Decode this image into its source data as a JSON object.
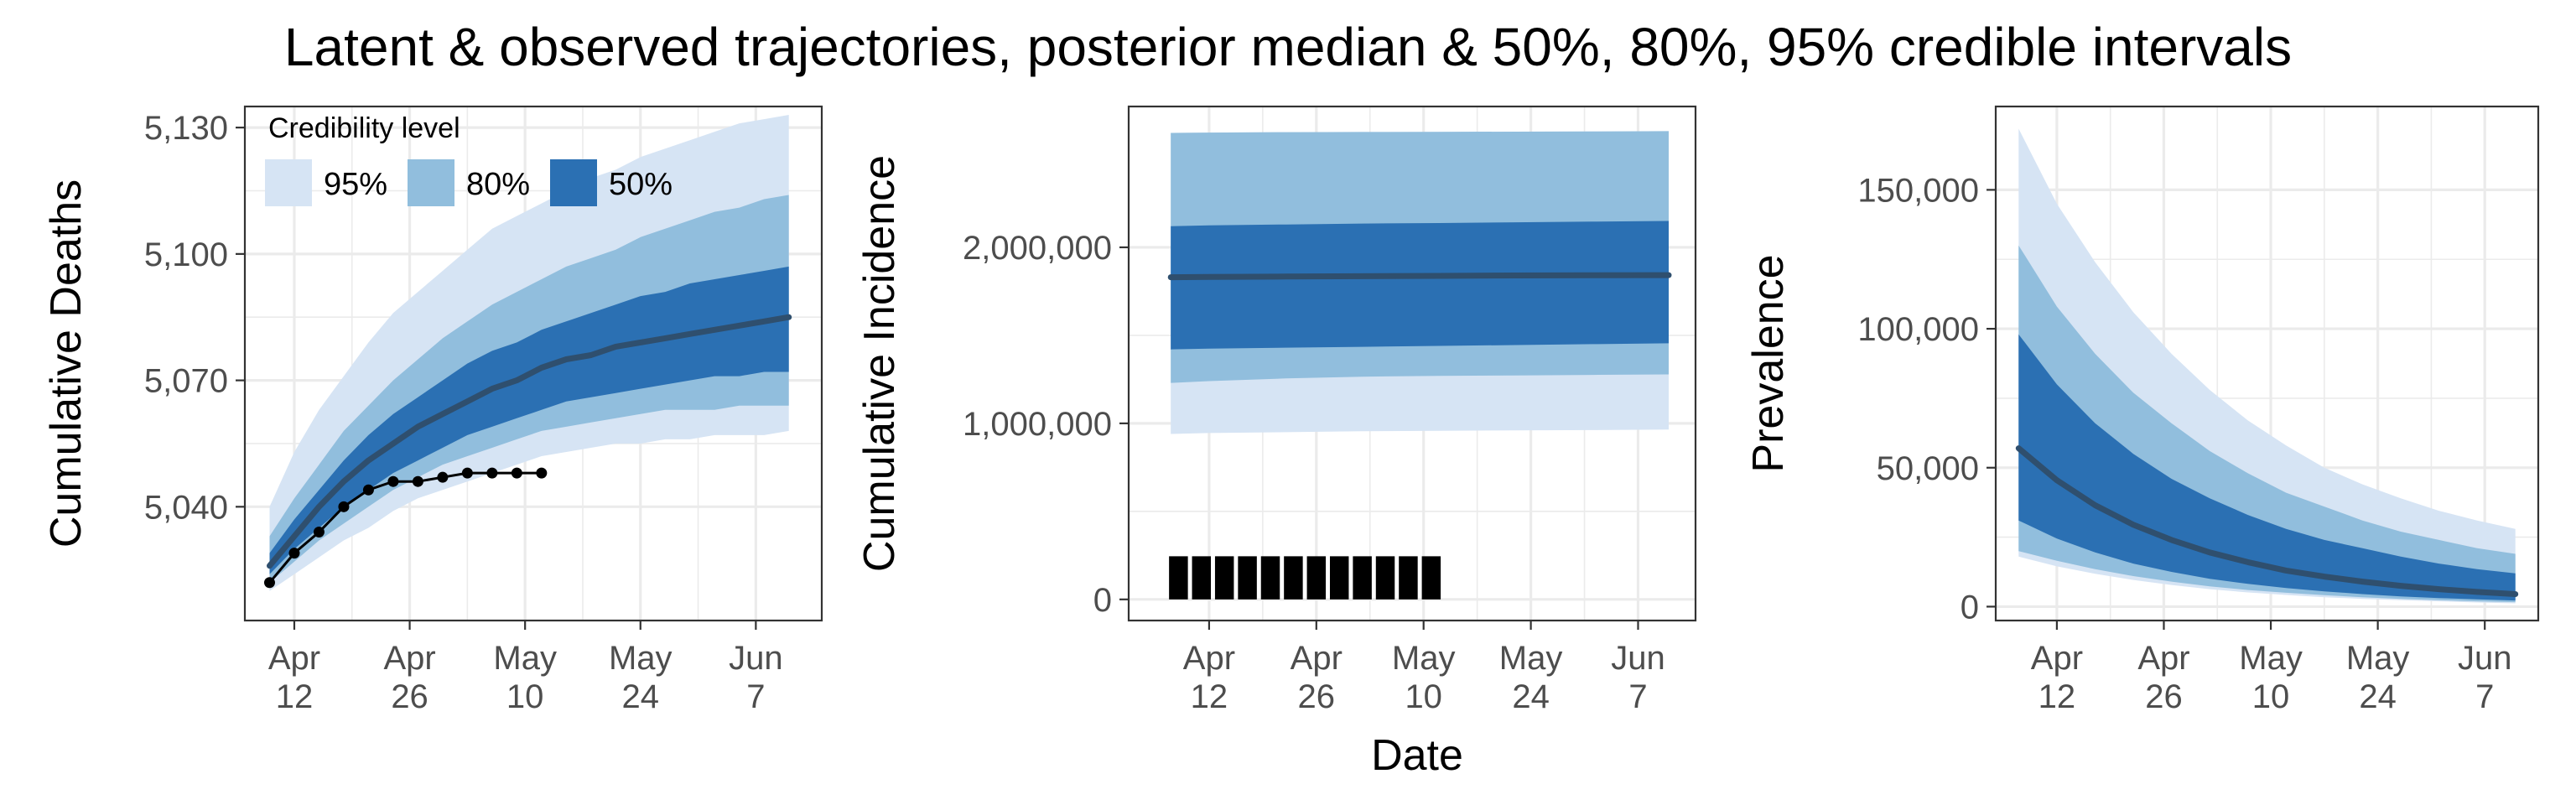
{
  "figure": {
    "title": "Latent & observed trajectories, posterior median & 50%, 80%, 95% credible intervals",
    "shared_xlabel": "Date"
  },
  "colors": {
    "ci95": "#d6e4f4",
    "ci80": "#91bedd",
    "ci50": "#2b70b3",
    "median": "#2f4f6e",
    "observed": "#000000"
  },
  "legend": {
    "title": "Credibility level",
    "items": [
      {
        "label": "95%",
        "color": "#d6e4f4"
      },
      {
        "label": "80%",
        "color": "#91bedd"
      },
      {
        "label": "50%",
        "color": "#2b70b3"
      }
    ]
  },
  "chart_data": [
    {
      "type": "area",
      "ylabel": "Cumulative Deaths",
      "x_ticks": [
        {
          "x": 0,
          "line1": "Apr",
          "line2": "12"
        },
        {
          "x": 14,
          "line1": "Apr",
          "line2": "26"
        },
        {
          "x": 28,
          "line1": "May",
          "line2": "10"
        },
        {
          "x": 42,
          "line1": "May",
          "line2": "24"
        },
        {
          "x": 56,
          "line1": "Jun",
          "line2": "7"
        }
      ],
      "xlim": [
        -6,
        64
      ],
      "ylim": [
        5013,
        5135
      ],
      "y_ticks": [
        {
          "value": 5040,
          "label": "5,040"
        },
        {
          "value": 5070,
          "label": "5,070"
        },
        {
          "value": 5100,
          "label": "5,100"
        },
        {
          "value": 5130,
          "label": "5,130"
        }
      ],
      "bands": {
        "x": [
          -3,
          0,
          3,
          6,
          9,
          12,
          15,
          18,
          21,
          24,
          27,
          30,
          33,
          36,
          39,
          42,
          45,
          48,
          51,
          54,
          57,
          60
        ],
        "ci95_lo": [
          5020,
          5024,
          5028,
          5032,
          5035,
          5039,
          5042,
          5044,
          5046,
          5048,
          5050,
          5052,
          5053,
          5054,
          5055,
          5055,
          5056,
          5056,
          5057,
          5057,
          5057,
          5058
        ],
        "ci95_hi": [
          5040,
          5053,
          5063,
          5071,
          5079,
          5086,
          5091,
          5096,
          5101,
          5106,
          5109,
          5112,
          5115,
          5118,
          5120,
          5123,
          5125,
          5127,
          5129,
          5131,
          5132,
          5133
        ],
        "ci80_lo": [
          5022,
          5027,
          5032,
          5036,
          5040,
          5044,
          5047,
          5050,
          5052,
          5054,
          5056,
          5058,
          5059,
          5060,
          5061,
          5062,
          5063,
          5063,
          5063,
          5064,
          5064,
          5064
        ],
        "ci80_hi": [
          5033,
          5042,
          5050,
          5058,
          5064,
          5070,
          5075,
          5080,
          5084,
          5088,
          5091,
          5094,
          5097,
          5099,
          5101,
          5104,
          5106,
          5108,
          5110,
          5111,
          5113,
          5114
        ],
        "ci50_lo": [
          5024,
          5030,
          5035,
          5040,
          5044,
          5048,
          5051,
          5054,
          5057,
          5059,
          5061,
          5063,
          5065,
          5066,
          5067,
          5068,
          5069,
          5070,
          5071,
          5071,
          5072,
          5072
        ],
        "ci50_hi": [
          5029,
          5037,
          5044,
          5051,
          5057,
          5062,
          5066,
          5070,
          5074,
          5077,
          5079,
          5082,
          5084,
          5086,
          5088,
          5090,
          5091,
          5093,
          5094,
          5095,
          5096,
          5097
        ],
        "median": [
          5026,
          5033,
          5040,
          5046,
          5051,
          5055,
          5059,
          5062,
          5065,
          5068,
          5070,
          5073,
          5075,
          5076,
          5078,
          5079,
          5080,
          5081,
          5082,
          5083,
          5084,
          5085
        ]
      },
      "observed": {
        "x": [
          -3,
          0,
          3,
          6,
          9,
          12,
          15,
          18,
          21,
          24,
          27,
          30
        ],
        "y": [
          5022,
          5029,
          5034,
          5040,
          5044,
          5046,
          5046,
          5047,
          5048,
          5048,
          5048,
          5048
        ]
      }
    },
    {
      "type": "area",
      "ylabel": "Cumulative Incidence",
      "x_ticks": [
        {
          "x": 0,
          "line1": "Apr",
          "line2": "12"
        },
        {
          "x": 14,
          "line1": "Apr",
          "line2": "26"
        },
        {
          "x": 28,
          "line1": "May",
          "line2": "10"
        },
        {
          "x": 42,
          "line1": "May",
          "line2": "24"
        },
        {
          "x": 56,
          "line1": "Jun",
          "line2": "7"
        }
      ],
      "xlim": [
        -10.5,
        63.5
      ],
      "ylim": [
        -120000,
        2800000
      ],
      "y_ticks": [
        {
          "value": 0,
          "label": "0"
        },
        {
          "value": 1000000,
          "label": "1,000,000"
        },
        {
          "value": 2000000,
          "label": "2,000,000"
        }
      ],
      "bands": {
        "x": [
          -5,
          0,
          10,
          20,
          30,
          40,
          50,
          60
        ],
        "ci95_lo": [
          940000,
          945000,
          950000,
          955000,
          958000,
          960000,
          962000,
          965000
        ],
        "ci95_hi": [
          2650000,
          2652000,
          2654000,
          2655000,
          2656000,
          2657000,
          2658000,
          2660000
        ],
        "ci80_lo": [
          1230000,
          1240000,
          1255000,
          1265000,
          1270000,
          1272000,
          1275000,
          1278000
        ],
        "ci80_hi": [
          2650000,
          2652000,
          2654000,
          2655000,
          2656000,
          2657000,
          2658000,
          2660000
        ],
        "ci50_lo": [
          1420000,
          1425000,
          1430000,
          1435000,
          1440000,
          1445000,
          1450000,
          1455000
        ],
        "ci50_hi": [
          2120000,
          2125000,
          2130000,
          2135000,
          2138000,
          2142000,
          2146000,
          2150000
        ],
        "median": [
          1830000,
          1832000,
          1834000,
          1836000,
          1838000,
          1840000,
          1841000,
          1842000
        ]
      },
      "observed_bars": {
        "x": [
          -4,
          -1,
          2,
          5,
          8,
          11,
          14,
          17,
          20,
          23,
          26,
          29
        ],
        "y": [
          245000,
          245000,
          245000,
          245000,
          245000,
          245000,
          245000,
          245000,
          245000,
          245000,
          245000,
          245000
        ]
      }
    },
    {
      "type": "area",
      "ylabel": "Prevalence",
      "x_ticks": [
        {
          "x": 0,
          "line1": "Apr",
          "line2": "12"
        },
        {
          "x": 14,
          "line1": "Apr",
          "line2": "26"
        },
        {
          "x": 28,
          "line1": "May",
          "line2": "10"
        },
        {
          "x": 42,
          "line1": "May",
          "line2": "24"
        },
        {
          "x": 56,
          "line1": "Jun",
          "line2": "7"
        }
      ],
      "xlim": [
        -8,
        63
      ],
      "ylim": [
        -5000,
        180000
      ],
      "y_ticks": [
        {
          "value": 0,
          "label": "0"
        },
        {
          "value": 50000,
          "label": "50,000"
        },
        {
          "value": 100000,
          "label": "100,000"
        },
        {
          "value": 150000,
          "label": "150,000"
        }
      ],
      "bands": {
        "x": [
          -5,
          0,
          5,
          10,
          15,
          20,
          25,
          30,
          35,
          40,
          45,
          50,
          55,
          60
        ],
        "ci95_lo": [
          18000,
          14500,
          11800,
          9600,
          7800,
          6300,
          5100,
          4200,
          3400,
          2800,
          2300,
          1900,
          1500,
          1200
        ],
        "ci95_hi": [
          172000,
          145000,
          124000,
          106000,
          91000,
          78000,
          67000,
          58000,
          50000,
          44000,
          39000,
          34500,
          31000,
          28000
        ],
        "ci80_lo": [
          20000,
          16500,
          13500,
          11000,
          9000,
          7300,
          6000,
          5000,
          4100,
          3400,
          2800,
          2300,
          1900,
          1600
        ],
        "ci80_hi": [
          130000,
          108000,
          91000,
          77000,
          66000,
          56000,
          48000,
          41000,
          36000,
          31000,
          27000,
          24000,
          21000,
          19000
        ],
        "ci50_lo": [
          31000,
          24500,
          19500,
          15500,
          12500,
          10000,
          8200,
          6700,
          5500,
          4500,
          3700,
          3100,
          2600,
          2200
        ],
        "ci50_hi": [
          98000,
          80000,
          66000,
          55000,
          46000,
          39000,
          33000,
          28000,
          24000,
          21000,
          18000,
          15500,
          13500,
          12000
        ],
        "median": [
          57000,
          45500,
          36500,
          29500,
          24000,
          19500,
          16000,
          13000,
          10800,
          9000,
          7500,
          6300,
          5300,
          4500
        ]
      }
    }
  ]
}
